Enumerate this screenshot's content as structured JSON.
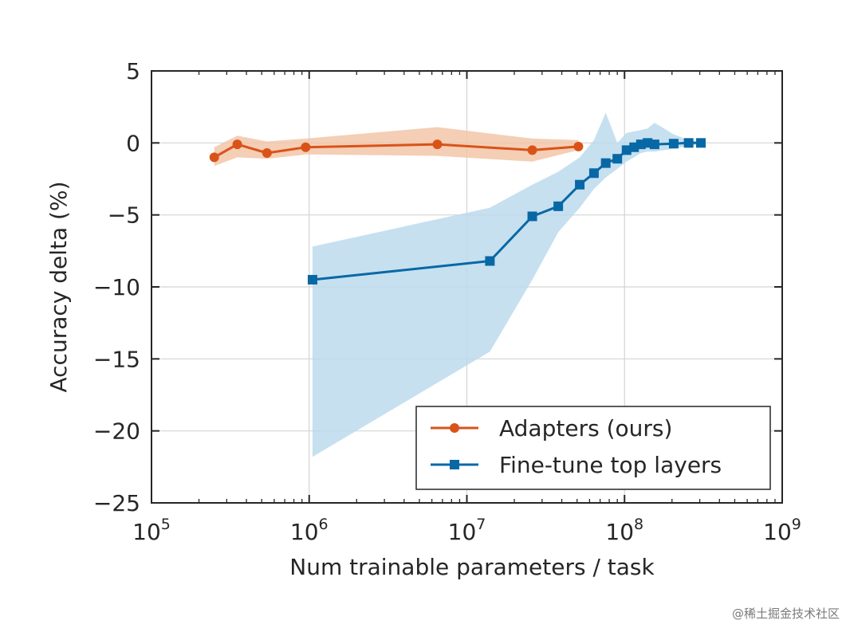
{
  "chart_data": {
    "type": "line",
    "title": "",
    "xlabel": "Num trainable parameters / task",
    "ylabel": "Accuracy delta (%)",
    "xscale": "log",
    "xlim": [
      100000,
      1000000000
    ],
    "ylim": [
      -25,
      5
    ],
    "grid": true,
    "legend_position": "lower-right",
    "x_ticks": [
      {
        "value": 100000,
        "base": "10",
        "exp": "5"
      },
      {
        "value": 1000000,
        "base": "10",
        "exp": "6"
      },
      {
        "value": 10000000,
        "base": "10",
        "exp": "7"
      },
      {
        "value": 100000000,
        "base": "10",
        "exp": "8"
      },
      {
        "value": 1000000000,
        "base": "10",
        "exp": "9"
      }
    ],
    "y_ticks": [
      {
        "value": 5,
        "label": "5"
      },
      {
        "value": 0,
        "label": "0"
      },
      {
        "value": -5,
        "label": "−5"
      },
      {
        "value": -10,
        "label": "−10"
      },
      {
        "value": -15,
        "label": "−15"
      },
      {
        "value": -20,
        "label": "−20"
      },
      {
        "value": -25,
        "label": "−25"
      }
    ],
    "series": [
      {
        "name": "Adapters (ours)",
        "color": "#d95319",
        "band_color": "#f2c6a8",
        "marker": "circle",
        "x": [
          250000,
          350000,
          540000,
          950000,
          6500000,
          26000000,
          51000000
        ],
        "y": [
          -1.0,
          -0.1,
          -0.7,
          -0.3,
          -0.1,
          -0.5,
          -0.25
        ],
        "band_x": [
          250000,
          350000,
          540000,
          950000,
          6500000,
          26000000,
          51000000
        ],
        "band_upper": [
          -0.3,
          0.5,
          0.1,
          0.3,
          1.1,
          0.3,
          0.2
        ],
        "band_lower": [
          -1.6,
          -1.0,
          -1.1,
          -0.8,
          -0.9,
          -1.3,
          -0.5
        ]
      },
      {
        "name": "Fine-tune top layers",
        "color": "#0868a5",
        "band_color": "#bcdbed",
        "marker": "square",
        "x": [
          1050000,
          14000000,
          26000000,
          38000000,
          52000000,
          64000000,
          76000000,
          90000000,
          103000000,
          115000000,
          127000000,
          140000000,
          155000000,
          205000000,
          255000000,
          305000000
        ],
        "y": [
          -9.5,
          -8.2,
          -5.1,
          -4.4,
          -2.9,
          -2.1,
          -1.4,
          -1.1,
          -0.5,
          -0.3,
          -0.1,
          0.0,
          -0.1,
          -0.05,
          0.0,
          0.0
        ],
        "band_x": [
          1050000,
          14000000,
          26000000,
          38000000,
          52000000,
          64000000,
          76000000,
          90000000,
          103000000,
          115000000,
          127000000,
          140000000,
          155000000,
          205000000,
          255000000,
          305000000
        ],
        "band_upper": [
          -7.2,
          -4.5,
          -2.9,
          -2.0,
          -1.0,
          0.2,
          2.1,
          0.0,
          0.7,
          0.8,
          0.9,
          1.0,
          1.4,
          0.6,
          0.2,
          0.1
        ],
        "band_lower": [
          -21.8,
          -14.5,
          -9.5,
          -6.2,
          -4.5,
          -3.2,
          -2.4,
          -1.8,
          -1.3,
          -1.0,
          -0.7,
          -0.6,
          -0.6,
          -0.4,
          -0.2,
          -0.1
        ]
      }
    ]
  },
  "watermark": "@稀土掘金技术社区"
}
